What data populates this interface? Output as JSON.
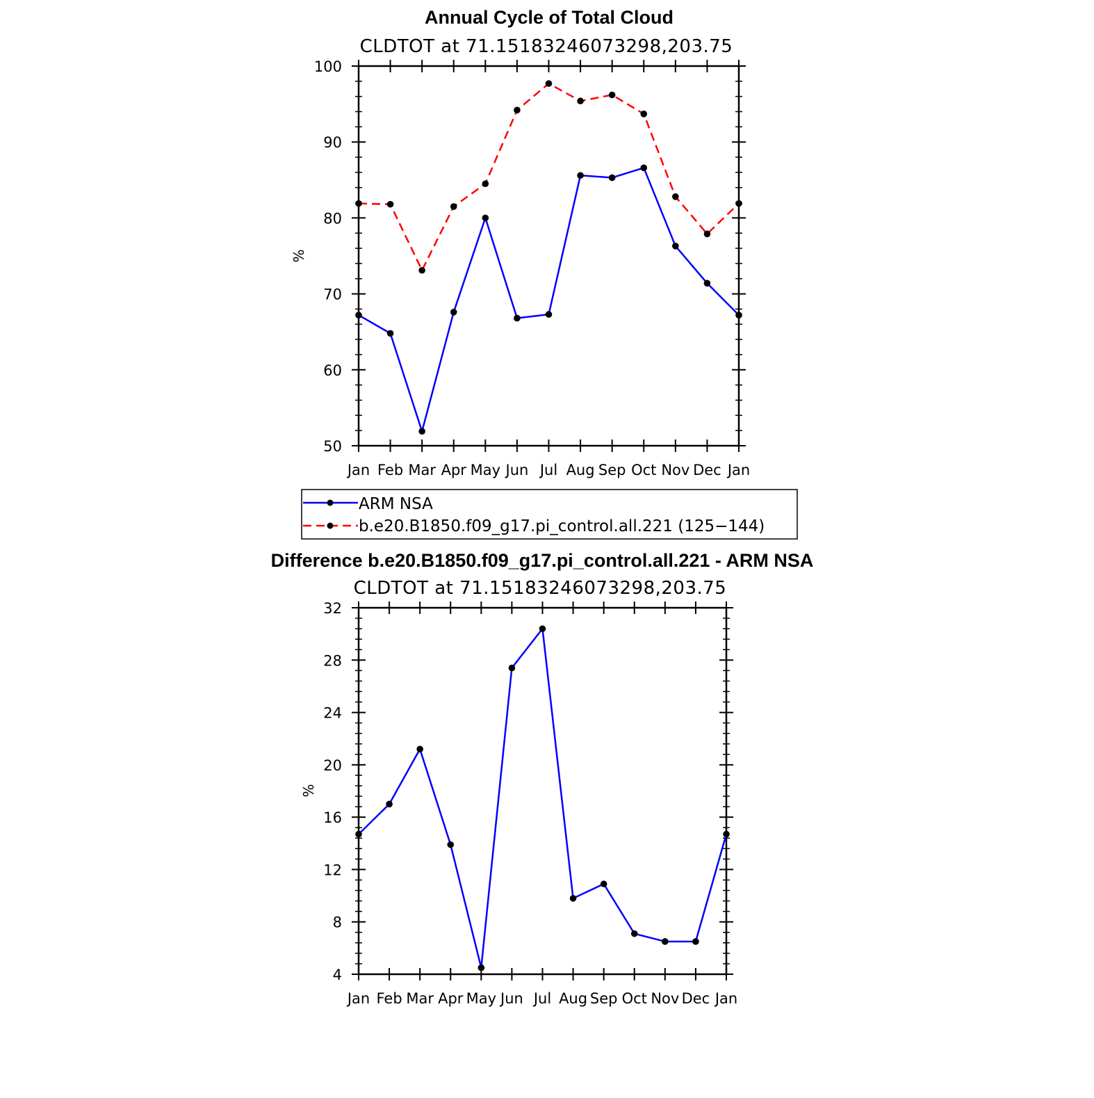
{
  "chart_data": [
    {
      "type": "line",
      "title": "Annual Cycle of Total Cloud",
      "subtitle": "CLDTOT at 71.15183246073298,203.75",
      "xlabel": "",
      "ylabel": "%",
      "categories": [
        "Jan",
        "Feb",
        "Mar",
        "Apr",
        "May",
        "Jun",
        "Jul",
        "Aug",
        "Sep",
        "Oct",
        "Nov",
        "Dec",
        "Jan"
      ],
      "ylim": [
        50,
        100
      ],
      "yticks": [
        "50",
        "60",
        "70",
        "80",
        "90",
        "100"
      ],
      "grid": false,
      "legend_position": "bottom",
      "series": [
        {
          "name": "ARM NSA",
          "color": "#0000ff",
          "dash": "solid",
          "values": [
            67.2,
            64.8,
            51.9,
            67.6,
            80.0,
            66.8,
            67.3,
            85.6,
            85.3,
            86.6,
            76.3,
            71.4,
            67.2
          ]
        },
        {
          "name": "b.e20.B1850.f09_g17.pi_control.all.221 (125−144)",
          "color": "#ff0000",
          "dash": "dashed",
          "values": [
            81.9,
            81.8,
            73.1,
            81.5,
            84.5,
            94.2,
            97.7,
            95.4,
            96.2,
            93.7,
            82.8,
            77.9,
            81.9
          ]
        }
      ]
    },
    {
      "type": "line",
      "title": "Difference b.e20.B1850.f09_g17.pi_control.all.221 - ARM NSA",
      "subtitle": "CLDTOT at 71.15183246073298,203.75",
      "xlabel": "",
      "ylabel": "%",
      "categories": [
        "Jan",
        "Feb",
        "Mar",
        "Apr",
        "May",
        "Jun",
        "Jul",
        "Aug",
        "Sep",
        "Oct",
        "Nov",
        "Dec",
        "Jan"
      ],
      "ylim": [
        4,
        32
      ],
      "yticks": [
        "4",
        "8",
        "12",
        "16",
        "20",
        "24",
        "28",
        "32"
      ],
      "grid": false,
      "series": [
        {
          "color": "#0000ff",
          "dash": "solid",
          "values": [
            14.7,
            17.0,
            21.2,
            13.9,
            4.5,
            27.4,
            30.4,
            9.8,
            10.9,
            7.1,
            6.5,
            6.5,
            14.7
          ]
        }
      ]
    }
  ]
}
